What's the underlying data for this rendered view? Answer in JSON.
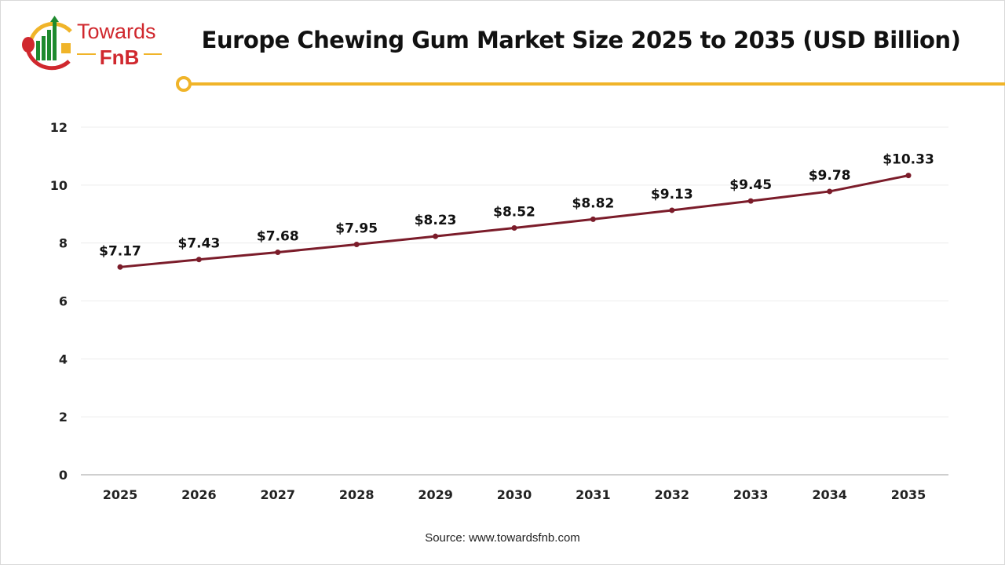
{
  "logo": {
    "line1": "Towards",
    "line2": "FnB"
  },
  "colors": {
    "line": "#7b1c2a",
    "accent": "#f0b429",
    "logo_red": "#d0282e",
    "logo_green": "#1e8a2e"
  },
  "source": "Source: www.towardsfnb.com",
  "chart_data": {
    "type": "line",
    "title": "Europe Chewing Gum Market Size 2025 to 2035 (USD Billion)",
    "categories": [
      "2025",
      "2026",
      "2027",
      "2028",
      "2029",
      "2030",
      "2031",
      "2032",
      "2033",
      "2034",
      "2035"
    ],
    "values": [
      7.17,
      7.43,
      7.68,
      7.95,
      8.23,
      8.52,
      8.82,
      9.13,
      9.45,
      9.78,
      10.33
    ],
    "data_labels": [
      "$7.17",
      "$7.43",
      "$7.68",
      "$7.95",
      "$8.23",
      "$8.52",
      "$8.82",
      "$9.13",
      "$9.45",
      "$9.78",
      "$10.33"
    ],
    "ylim": [
      0,
      12
    ],
    "yticks": [
      "0",
      "2",
      "4",
      "6",
      "8",
      "10",
      "12"
    ],
    "grid": true,
    "xlabel": "",
    "ylabel": ""
  }
}
